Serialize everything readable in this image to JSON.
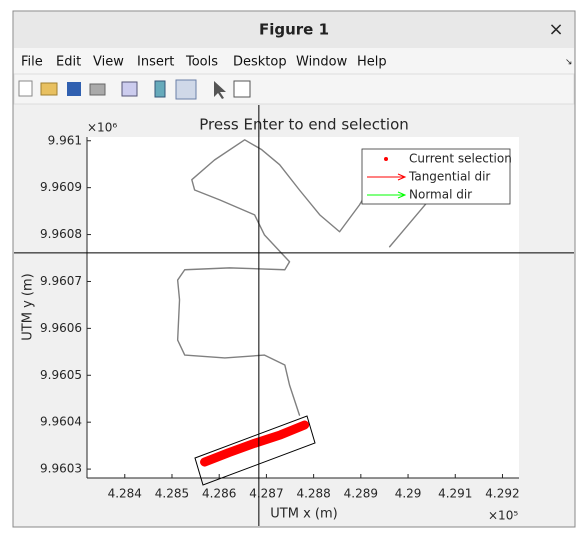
{
  "window": {
    "title": "Figure 1",
    "close": "×"
  },
  "menu": [
    "File",
    "Edit",
    "View",
    "Insert",
    "Tools",
    "Desktop",
    "Window",
    "Help"
  ],
  "chart_data": {
    "type": "line",
    "title": "Press Enter to end selection",
    "xlabel": "UTM x (m)",
    "ylabel": "UTM y (m)",
    "x_exponent": "×10⁵",
    "y_exponent": "×10⁶",
    "xlim": [
      428320,
      429235
    ],
    "ylim": [
      9960281,
      9961008
    ],
    "xticks": [
      {
        "value": 428400,
        "label": "4.284"
      },
      {
        "value": 428500,
        "label": "4.285"
      },
      {
        "value": 428600,
        "label": "4.286"
      },
      {
        "value": 428700,
        "label": "4.287"
      },
      {
        "value": 428800,
        "label": "4.288"
      },
      {
        "value": 428900,
        "label": "4.289"
      },
      {
        "value": 429000,
        "label": "4.29"
      },
      {
        "value": 429100,
        "label": "4.291"
      },
      {
        "value": 429200,
        "label": "4.292"
      }
    ],
    "yticks": [
      {
        "value": 9960300,
        "label": "9.9603"
      },
      {
        "value": 9960400,
        "label": "9.9604"
      },
      {
        "value": 9960500,
        "label": "9.9605"
      },
      {
        "value": 9960600,
        "label": "9.9606"
      },
      {
        "value": 9960700,
        "label": "9.9607"
      },
      {
        "value": 9960800,
        "label": "9.9608"
      },
      {
        "value": 9960900,
        "label": "9.9609"
      },
      {
        "value": 9961000,
        "label": "9.961"
      }
    ],
    "crosshair": {
      "x": 428684,
      "y": 9960761
    },
    "series": [
      {
        "color": "#808080",
        "x": [
          428770,
          428749,
          428739,
          428696,
          428612,
          428527,
          428512,
          428516,
          428512,
          428527,
          428622,
          428739,
          428749,
          428696,
          428675,
          428601,
          428548,
          428542,
          428590,
          428654,
          428690,
          428728,
          428770,
          428813,
          428855,
          428897,
          428923,
          null,
          428961,
          428982,
          429045
        ],
        "values": [
          9960415,
          9960479,
          9960522,
          9960543,
          9960537,
          9960543,
          9960575,
          9960661,
          9960703,
          9960725,
          9960729,
          9960725,
          9960742,
          9960799,
          9960842,
          9960874,
          9960895,
          9960917,
          9960959,
          9961002,
          9960981,
          9960949,
          9960895,
          9960842,
          9960806,
          9960863,
          9960906,
          null,
          9960774,
          9960799,
          9960874
        ]
      },
      {
        "name": "Current selection",
        "color": "#ff0000",
        "x": [
          428569,
          428620,
          428675,
          428730,
          428781
        ],
        "values": [
          9960315,
          9960335,
          9960355,
          9960373,
          9960394
        ]
      },
      {
        "name": "Tangential dir",
        "color": "#ff0000",
        "x": [],
        "values": []
      },
      {
        "name": "Normal dir",
        "color": "#00ff00",
        "x": [],
        "values": []
      }
    ]
  }
}
